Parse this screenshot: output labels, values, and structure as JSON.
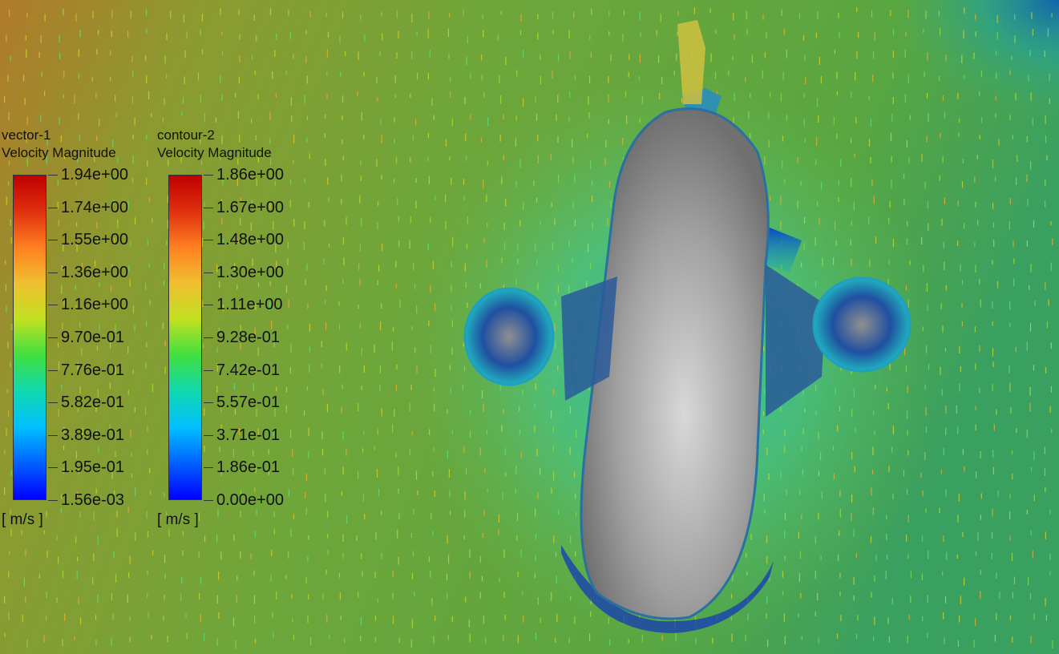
{
  "colors": {
    "scale": [
      "#0000ff",
      "#0060ff",
      "#00c0ff",
      "#10d8b0",
      "#40e040",
      "#c0e020",
      "#f0c030",
      "#ff8020",
      "#e03010",
      "#c00000"
    ],
    "background_far": "#6aa23a",
    "body_surface": "#a8a8a8"
  },
  "legends": [
    {
      "title": "vector-1",
      "variable": "Velocity Magnitude",
      "labels": [
        "1.94e+00",
        "1.74e+00",
        "1.55e+00",
        "1.36e+00",
        "1.16e+00",
        "9.70e-01",
        "7.76e-01",
        "5.82e-01",
        "3.89e-01",
        "1.95e-01",
        "1.56e-03"
      ],
      "unit": "[ m/s ]"
    },
    {
      "title": "contour-2",
      "variable": "Velocity Magnitude",
      "labels": [
        "1.86e+00",
        "1.67e+00",
        "1.48e+00",
        "1.30e+00",
        "1.11e+00",
        "9.28e-01",
        "7.42e-01",
        "5.57e-01",
        "3.71e-01",
        "1.86e-01",
        "0.00e+00"
      ],
      "unit": "[ m/s ]"
    }
  ]
}
